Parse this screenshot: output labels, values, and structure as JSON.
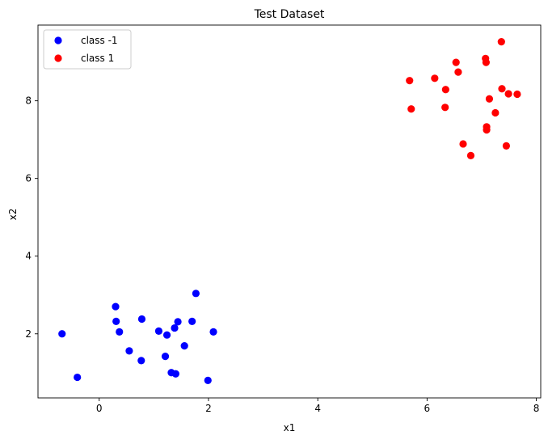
{
  "chart_data": {
    "type": "scatter",
    "title": "Test Dataset",
    "xlabel": "x1",
    "ylabel": "x2",
    "xlim": [
      -1.12,
      8.08
    ],
    "ylim": [
      0.35,
      9.95
    ],
    "xticks": [
      0,
      2,
      4,
      6,
      8
    ],
    "yticks": [
      2,
      4,
      6,
      8
    ],
    "grid": false,
    "legend_position": "top-left",
    "series": [
      {
        "name": "class -1",
        "color": "#0000ff",
        "points": [
          [
            -0.68,
            2.0
          ],
          [
            -0.4,
            0.88
          ],
          [
            0.3,
            2.7
          ],
          [
            0.31,
            2.32
          ],
          [
            0.37,
            2.05
          ],
          [
            0.55,
            1.56
          ],
          [
            0.77,
            1.31
          ],
          [
            0.78,
            2.38
          ],
          [
            1.09,
            2.07
          ],
          [
            1.21,
            1.42
          ],
          [
            1.24,
            1.97
          ],
          [
            1.32,
            1.0
          ],
          [
            1.38,
            2.15
          ],
          [
            1.4,
            0.97
          ],
          [
            1.44,
            2.31
          ],
          [
            1.56,
            1.69
          ],
          [
            1.7,
            2.32
          ],
          [
            1.77,
            3.04
          ],
          [
            1.99,
            0.8
          ],
          [
            2.09,
            2.05
          ]
        ]
      },
      {
        "name": "class 1",
        "color": "#ff0000",
        "points": [
          [
            5.68,
            8.52
          ],
          [
            5.71,
            7.79
          ],
          [
            6.14,
            8.58
          ],
          [
            6.33,
            7.83
          ],
          [
            6.34,
            8.29
          ],
          [
            6.53,
            8.99
          ],
          [
            6.57,
            8.74
          ],
          [
            6.66,
            6.89
          ],
          [
            6.8,
            6.59
          ],
          [
            7.07,
            9.09
          ],
          [
            7.08,
            8.99
          ],
          [
            7.09,
            7.33
          ],
          [
            7.09,
            7.25
          ],
          [
            7.14,
            8.05
          ],
          [
            7.25,
            7.69
          ],
          [
            7.36,
            9.52
          ],
          [
            7.37,
            8.31
          ],
          [
            7.45,
            6.84
          ],
          [
            7.49,
            8.18
          ],
          [
            7.65,
            8.17
          ]
        ]
      }
    ]
  }
}
